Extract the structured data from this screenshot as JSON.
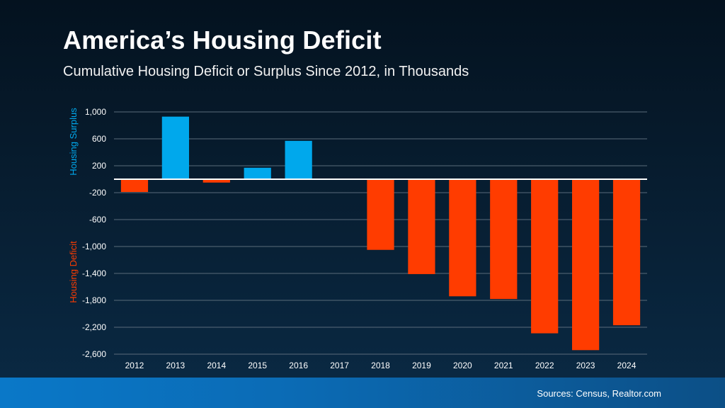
{
  "header": {
    "title": "America’s Housing Deficit",
    "subtitle": "Cumulative Housing Deficit or Surplus Since 2012, in Thousands"
  },
  "footer": {
    "sources": "Sources: Census, Realtor.com"
  },
  "chart_data": {
    "type": "bar",
    "categories": [
      "2012",
      "2013",
      "2014",
      "2015",
      "2016",
      "2017",
      "2018",
      "2019",
      "2020",
      "2021",
      "2022",
      "2023",
      "2024"
    ],
    "values": [
      -190,
      930,
      -50,
      170,
      570,
      0,
      -1050,
      -1410,
      -1740,
      -1780,
      -2290,
      -2540,
      -2170
    ],
    "ylim": [
      -2600,
      1000
    ],
    "yticks": [
      1000,
      600,
      200,
      -200,
      -600,
      -1000,
      -1400,
      -1800,
      -2200,
      -2600
    ],
    "ytick_labels": [
      "1,000",
      "600",
      "200",
      "-200",
      "-600",
      "-1,000",
      "-1,400",
      "-1,800",
      "-2,200",
      "-2,600"
    ],
    "surplus_label": "Housing Surplus",
    "deficit_label": "Housing Deficit",
    "colors": {
      "surplus": "#00a8ec",
      "deficit": "#ff3c00",
      "grid": "#5a6b7a",
      "zero": "#ffffff"
    },
    "grid": true
  }
}
